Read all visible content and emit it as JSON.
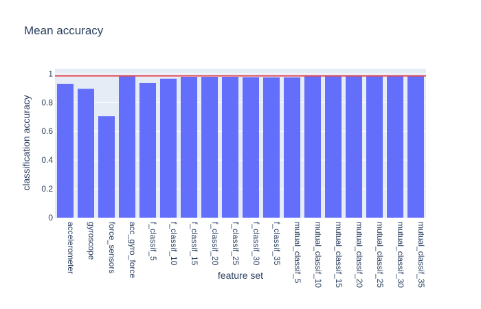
{
  "chart_data": {
    "type": "bar",
    "title": "Mean accuracy",
    "xlabel": "feature set",
    "ylabel": "classification accuracy",
    "categories": [
      "accelerometer",
      "gyroscope",
      "force_sensors",
      "acc_gyro_force",
      "f_classif_5",
      "f_classif_10",
      "f_classif_15",
      "f_classif_20",
      "f_classif_25",
      "f_classif_30",
      "f_classif_35",
      "mutual_classif_5",
      "mutual_classif_10",
      "mutual_classif_15",
      "mutual_classif_20",
      "mutual_classif_25",
      "mutual_classif_30",
      "mutual_classif_35"
    ],
    "values": [
      0.93,
      0.895,
      0.705,
      0.985,
      0.935,
      0.965,
      0.978,
      0.978,
      0.978,
      0.976,
      0.975,
      0.975,
      0.985,
      0.988,
      0.986,
      0.986,
      0.985,
      0.985
    ],
    "reference_line": 0.985,
    "ylim": [
      0,
      1.035
    ],
    "yticks": [
      0,
      0.2,
      0.4,
      0.6,
      0.8,
      1
    ],
    "grid": true,
    "colors": {
      "bar": "#636efa",
      "reference_line": "#e8414f",
      "plot_background": "#e5ecf6",
      "gridline": "#ffffff",
      "text": "#2a3f5f"
    }
  }
}
